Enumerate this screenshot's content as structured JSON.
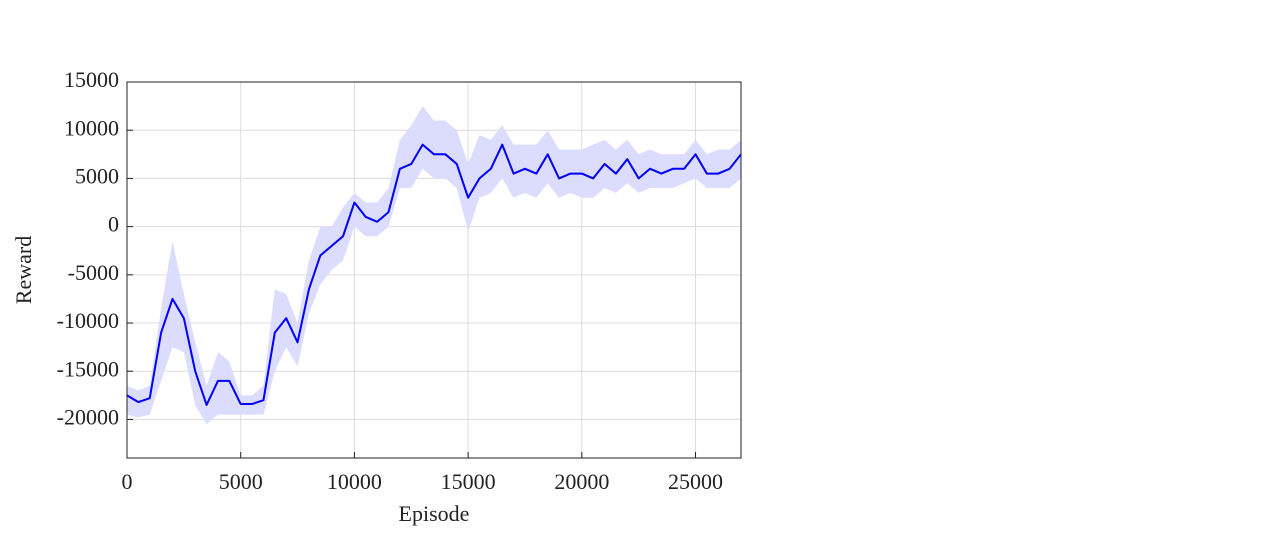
{
  "chart_data": {
    "type": "line",
    "xlabel": "Episode",
    "ylabel": "Reward",
    "x": [
      0,
      500,
      1000,
      1500,
      2000,
      2500,
      3000,
      3500,
      4000,
      4500,
      5000,
      5500,
      6000,
      6500,
      7000,
      7500,
      8000,
      8500,
      9000,
      9500,
      10000,
      10500,
      11000,
      11500,
      12000,
      12500,
      13000,
      13500,
      14000,
      14500,
      15000,
      15500,
      16000,
      16500,
      17000,
      17500,
      18000,
      18500,
      19000,
      19500,
      20000,
      20500,
      21000,
      21500,
      22000,
      22500,
      23000,
      23500,
      24000,
      24500,
      25000,
      25500,
      26000,
      26500,
      27000
    ],
    "values": [
      -17500,
      -18200,
      -17800,
      -11000,
      -7500,
      -9500,
      -15000,
      -18500,
      -16000,
      -16000,
      -18400,
      -18400,
      -18000,
      -11000,
      -9500,
      -12000,
      -6500,
      -3000,
      -2000,
      -1000,
      2500,
      1000,
      500,
      1500,
      6000,
      6500,
      8500,
      7500,
      7500,
      6500,
      3000,
      5000,
      6000,
      8500,
      5500,
      6000,
      5500,
      7500,
      5000,
      5500,
      5500,
      5000,
      6500,
      5500,
      7000,
      5000,
      6000,
      5500,
      6000,
      6000,
      7500,
      5500,
      5500,
      6000,
      7500
    ],
    "upper": [
      -16500,
      -17000,
      -16500,
      -8500,
      -1500,
      -7000,
      -12000,
      -16500,
      -13000,
      -14000,
      -17500,
      -17500,
      -16500,
      -6500,
      -7000,
      -10000,
      -3500,
      0,
      0,
      2000,
      3500,
      2500,
      2500,
      4000,
      9000,
      10500,
      12500,
      11000,
      11000,
      10000,
      6500,
      9500,
      9000,
      10500,
      8500,
      8500,
      8500,
      10000,
      8000,
      8000,
      8000,
      8500,
      9000,
      8000,
      9000,
      7500,
      8000,
      7500,
      7500,
      7500,
      9000,
      7500,
      8000,
      8000,
      9000
    ],
    "lower": [
      -19500,
      -19800,
      -19500,
      -16000,
      -12500,
      -13000,
      -18500,
      -20500,
      -19500,
      -19500,
      -19500,
      -19500,
      -19500,
      -15000,
      -12500,
      -14500,
      -9000,
      -6000,
      -4500,
      -3500,
      0,
      -1000,
      -1000,
      0,
      4000,
      4000,
      6000,
      5000,
      5000,
      4000,
      -500,
      3000,
      3500,
      5000,
      3000,
      3500,
      3000,
      4500,
      3000,
      3500,
      3000,
      3000,
      4000,
      3500,
      4500,
      3500,
      4000,
      4000,
      4000,
      4500,
      5000,
      4000,
      4000,
      4000,
      5000
    ],
    "color": "#0000ff",
    "band_color": "#dcdcff",
    "xlim": [
      0,
      27000
    ],
    "xticks": [
      0,
      5000,
      10000,
      15000,
      20000,
      25000
    ],
    "ylim": [
      -24000,
      15000
    ],
    "yticks": [
      -20000,
      -15000,
      -10000,
      -5000,
      0,
      5000,
      10000,
      15000
    ],
    "grid": true
  }
}
